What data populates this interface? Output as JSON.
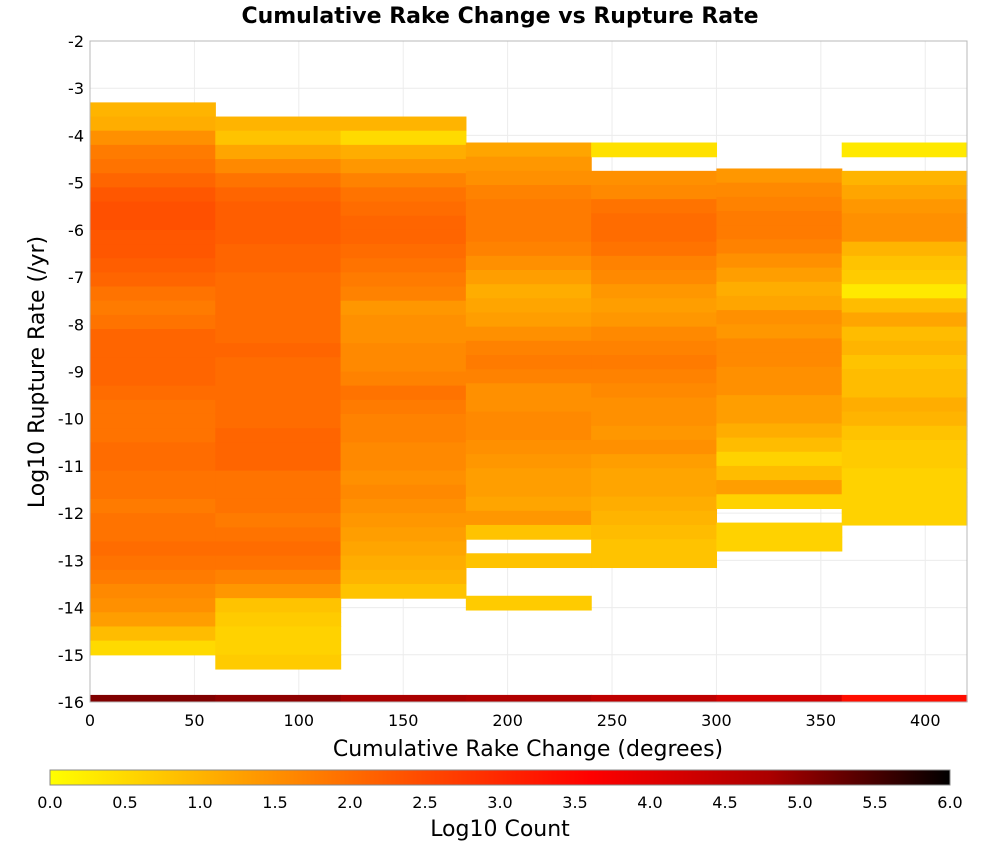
{
  "chart_data": {
    "type": "heatmap",
    "title": "Cumulative Rake Change vs Rupture Rate",
    "xlabel": "Cumulative Rake Change (degrees)",
    "ylabel": "Log10 Rupture Rate (/yr)",
    "xlim": [
      0,
      420
    ],
    "ylim": [
      -16,
      -2
    ],
    "xticks": [
      0,
      50,
      100,
      150,
      200,
      250,
      300,
      350,
      400
    ],
    "yticks": [
      -2,
      -3,
      -4,
      -5,
      -6,
      -7,
      -8,
      -9,
      -10,
      -11,
      -12,
      -13,
      -14,
      -15,
      -16
    ],
    "grid": true,
    "x_bin_edges": [
      0,
      60,
      120,
      180,
      240,
      300,
      360,
      420
    ],
    "y_bin_size": 0.3,
    "colorbar": {
      "label": "Log10 Count",
      "range": [
        0,
        6
      ],
      "ticks": [
        "0.0",
        "0.5",
        "1.0",
        "1.5",
        "2.0",
        "2.5",
        "3.0",
        "3.5",
        "4.0",
        "4.5",
        "5.0",
        "5.5",
        "6.0"
      ],
      "colormap": [
        "#ffff00",
        "#ffa500",
        "#ff5000",
        "#ff0000",
        "#aa0000",
        "#000000"
      ]
    },
    "columns": [
      {
        "x0": 0,
        "x1": 60,
        "y_top": -3.3,
        "values": [
          1.0,
          1.1,
          1.5,
          1.8,
          1.9,
          2.1,
          2.3,
          2.4,
          2.4,
          2.3,
          2.3,
          2.2,
          2.1,
          1.9,
          1.8,
          1.9,
          2.1,
          2.1,
          2.1,
          2.1,
          2.0,
          1.9,
          1.9,
          1.9,
          2.0,
          2.0,
          1.9,
          1.9,
          1.8,
          1.9,
          1.9,
          2.0,
          1.9,
          1.8,
          1.6,
          1.5,
          1.3,
          0.9,
          0.5
        ]
      },
      {
        "x0": 60,
        "x1": 120,
        "y_top": -3.6,
        "values": [
          1.0,
          0.8,
          1.2,
          1.6,
          1.9,
          2.1,
          2.2,
          2.2,
          2.2,
          2.1,
          2.1,
          2.0,
          2.0,
          2.0,
          2.0,
          2.0,
          2.1,
          2.0,
          2.0,
          2.0,
          2.0,
          2.0,
          2.1,
          2.1,
          2.1,
          1.9,
          1.9,
          1.9,
          1.8,
          1.9,
          2.0,
          1.9,
          1.7,
          1.4,
          0.8,
          0.7,
          0.6,
          0.6,
          0.7
        ]
      },
      {
        "x0": 120,
        "x1": 180,
        "y_top": -3.6,
        "values": [
          1.0,
          0.5,
          1.1,
          1.4,
          1.7,
          1.9,
          2.0,
          2.1,
          2.1,
          2.0,
          1.9,
          1.8,
          1.7,
          1.4,
          1.5,
          1.5,
          1.6,
          1.6,
          1.7,
          1.9,
          1.8,
          1.7,
          1.7,
          1.6,
          1.6,
          1.5,
          1.6,
          1.5,
          1.4,
          1.3,
          1.2,
          1.1,
          1.0,
          0.8
        ]
      },
      {
        "x0": 180,
        "x1": 240,
        "y_top": -4.15,
        "values": [
          1.2,
          1.4,
          1.5,
          1.7,
          1.8,
          1.8,
          1.8,
          1.7,
          1.5,
          1.3,
          1.1,
          1.2,
          1.3,
          1.5,
          1.7,
          1.8,
          1.7,
          1.5,
          1.5,
          1.6,
          1.6,
          1.5,
          1.4,
          1.3,
          1.3,
          1.2,
          1.4,
          0.8,
          null,
          0.8,
          null,
          null,
          0.7
        ]
      },
      {
        "x0": 240,
        "x1": 300,
        "y_top": -4.15,
        "values": [
          0.4,
          null,
          1.5,
          1.6,
          1.9,
          2.0,
          2.0,
          1.9,
          1.7,
          1.6,
          1.4,
          1.3,
          1.4,
          1.6,
          1.7,
          1.8,
          1.7,
          1.6,
          1.5,
          1.5,
          1.4,
          1.5,
          1.3,
          1.2,
          1.2,
          1.1,
          1.0,
          0.9,
          0.8,
          0.8
        ]
      },
      {
        "x0": 300,
        "x1": 360,
        "y_top": -4.7,
        "values": [
          1.4,
          1.6,
          1.7,
          1.8,
          1.8,
          1.7,
          1.5,
          1.3,
          1.1,
          1.2,
          1.5,
          1.4,
          1.6,
          1.6,
          1.5,
          1.5,
          1.3,
          1.3,
          1.1,
          0.9,
          0.6,
          0.9,
          1.3,
          0.6,
          null,
          0.6,
          0.6
        ]
      },
      {
        "x0": 360,
        "x1": 420,
        "y_top": -4.15,
        "values": [
          0.3,
          null,
          1.0,
          1.2,
          1.4,
          1.5,
          1.5,
          1.0,
          0.8,
          0.7,
          0.3,
          0.9,
          1.2,
          0.9,
          1.0,
          0.8,
          0.9,
          0.9,
          1.1,
          1.0,
          0.8,
          0.7,
          0.7,
          0.6,
          0.6,
          0.6,
          0.6
        ]
      }
    ],
    "bottom_band": {
      "y_top": -15.85,
      "values": [
        5.1,
        5.0,
        4.8,
        4.7,
        4.5,
        4.2,
        3.4
      ]
    }
  }
}
